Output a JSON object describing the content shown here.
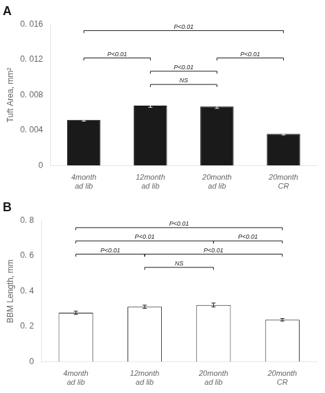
{
  "chart_data": [
    {
      "type": "bar",
      "title": "A",
      "ylabel": "Tuft Area, mm²",
      "categories": [
        "4month\nad lib",
        "12month\nad lib",
        "20month\nad lib",
        "20month\nCR"
      ],
      "values": [
        0.0052,
        0.0068,
        0.0067,
        0.0036
      ],
      "errors": [
        0.00015,
        0.00018,
        0.0002,
        0.00012
      ],
      "color": "#1a1a1a",
      "ylim": [
        0,
        0.016
      ],
      "yticks": [
        0,
        {
          "value": 0.004,
          "label": "0. 004"
        },
        {
          "value": 0.008,
          "label": "0. 008"
        },
        {
          "value": 0.012,
          "label": "0. 012"
        },
        {
          "value": 0.016,
          "label": "0. 016"
        }
      ],
      "grid": false,
      "annotations": [
        {
          "x1": 0,
          "x2": 3,
          "y": 0.0153,
          "label": "P<0.01"
        },
        {
          "x1": 0,
          "x2": 1,
          "y": 0.0122,
          "label": "P<0.01"
        },
        {
          "x1": 2,
          "x2": 3,
          "y": 0.0122,
          "label": "P<0.01"
        },
        {
          "x1": 1,
          "x2": 2,
          "y": 0.0107,
          "label": "P<0.01"
        },
        {
          "x1": 1,
          "x2": 2,
          "y": 0.0092,
          "label": "NS"
        }
      ]
    },
    {
      "type": "bar",
      "title": "B",
      "ylabel": "BBM Length, mm",
      "categories": [
        "4month\nad lib",
        "12month\nad lib",
        "20month\nad lib",
        "20month\nCR"
      ],
      "values": [
        0.278,
        0.312,
        0.322,
        0.238
      ],
      "errors": [
        0.009,
        0.009,
        0.011,
        0.007
      ],
      "color": "#ffffff",
      "ylim": [
        0,
        0.8
      ],
      "yticks": [
        0,
        {
          "value": 0.2,
          "label": "0. 2"
        },
        {
          "value": 0.4,
          "label": "0. 4"
        },
        {
          "value": 0.6,
          "label": "0. 6"
        },
        {
          "value": 0.8,
          "label": "0. 8"
        }
      ],
      "grid": false,
      "annotations": [
        {
          "x1": 0,
          "x2": 3,
          "y": 0.76,
          "label": "P<0.01"
        },
        {
          "x1": 0,
          "x2": 2,
          "y": 0.685,
          "label": "P<0.01"
        },
        {
          "x1": 2,
          "x2": 3,
          "y": 0.685,
          "label": "P<0.01"
        },
        {
          "x1": 0,
          "x2": 1,
          "y": 0.61,
          "label": "P<0.01"
        },
        {
          "x1": 1,
          "x2": 2,
          "y": 0.535,
          "label": "NS"
        },
        {
          "x1": 1,
          "x2": 3,
          "y": 0.61,
          "label": "P<0.01"
        }
      ]
    }
  ]
}
